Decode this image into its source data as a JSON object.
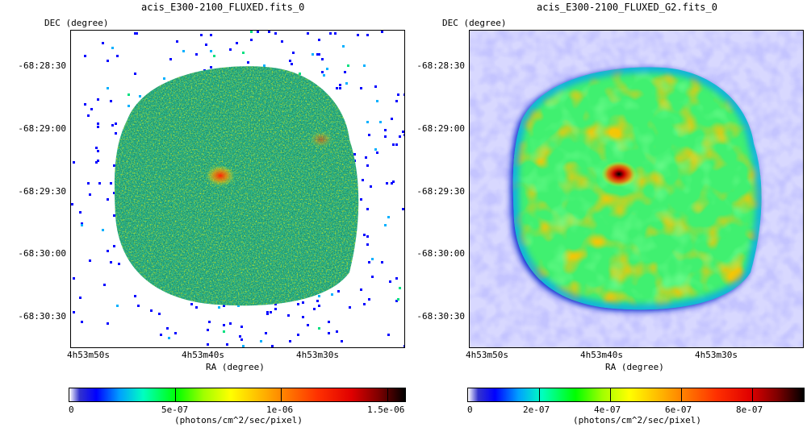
{
  "left": {
    "title": "acis_E300-2100_FLUXED.fits_0",
    "ylabel": "DEC (degree)",
    "yticks": [
      "-68:28:30",
      "-68:29:00",
      "-68:29:30",
      "-68:30:00",
      "-68:30:30"
    ],
    "xticks": [
      "4h53m50s",
      "4h53m40s",
      "4h53m30s"
    ],
    "xlabel": "RA (degree)",
    "colorbar": {
      "ticks": [
        "0",
        "5e-07",
        "1e-06",
        "1.5e-06"
      ],
      "unit": "(photons/cm^2/sec/pixel)"
    }
  },
  "right": {
    "title": "acis_E300-2100_FLUXED_G2.fits_0",
    "ylabel": "DEC (degree)",
    "yticks": [
      "-68:28:30",
      "-68:29:00",
      "-68:29:30",
      "-68:30:00",
      "-68:30:30"
    ],
    "xticks": [
      "4h53m50s",
      "4h53m40s",
      "4h53m30s"
    ],
    "xlabel": "RA (degree)",
    "colorbar": {
      "ticks": [
        "0",
        "2e-07",
        "4e-07",
        "6e-07",
        "8e-07"
      ],
      "unit": "(photons/cm^2/sec/pixel)"
    }
  },
  "colors": {
    "colormap": [
      "#ffffff",
      "#b3b3ff",
      "#0000cc",
      "#00c8ff",
      "#00ff40",
      "#ffff00",
      "#ff8000",
      "#ff0000",
      "#000000"
    ]
  }
}
